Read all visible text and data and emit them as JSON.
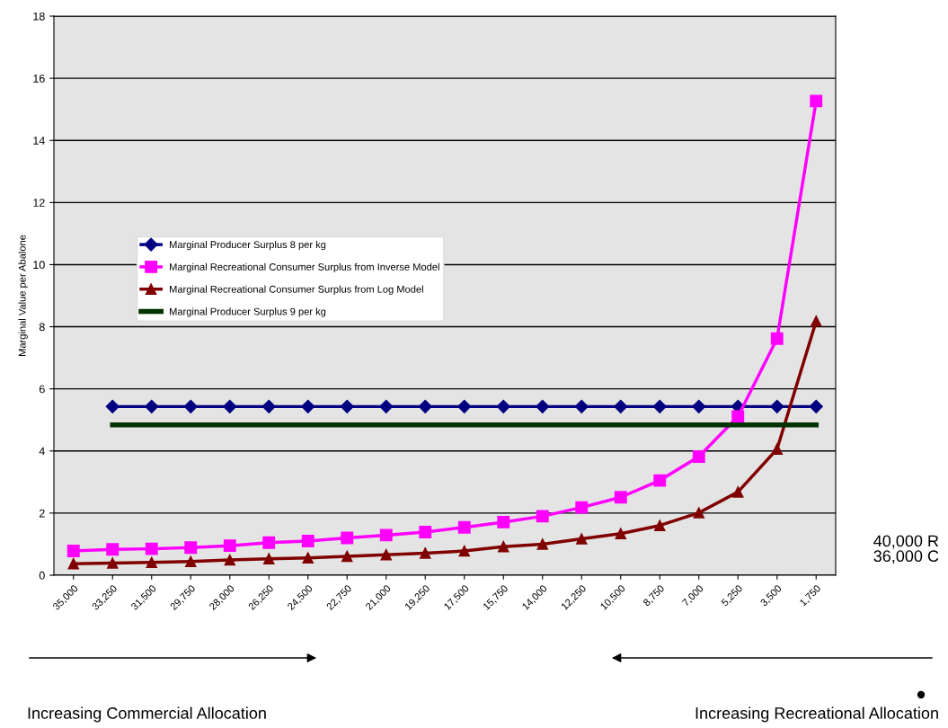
{
  "chart_data": {
    "type": "line",
    "ylabel": "Marginal Value per Abalone",
    "categories": [
      "35,000",
      "33,250",
      "31,500",
      "29,750",
      "28,000",
      "26,250",
      "24,500",
      "22,750",
      "21,000",
      "19,250",
      "17,500",
      "15,750",
      "14,000",
      "12,250",
      "10,500",
      "8,750",
      "7,000",
      "5,250",
      "3,500",
      "1,750"
    ],
    "series": [
      {
        "name": "Marginal Producer Surplus 8 per kg",
        "color": "#000080",
        "marker": "diamond",
        "values": [
          null,
          5.43,
          5.43,
          5.43,
          5.43,
          5.43,
          5.43,
          5.43,
          5.43,
          5.43,
          5.43,
          5.43,
          5.43,
          5.43,
          5.43,
          5.43,
          5.43,
          5.43,
          5.43,
          5.43
        ]
      },
      {
        "name": "Marginal Recreational Consumer Surplus from Inverse Model",
        "color": "#ff00ff",
        "marker": "square",
        "values": [
          0.78,
          0.83,
          0.85,
          0.89,
          0.95,
          1.05,
          1.1,
          1.2,
          1.29,
          1.39,
          1.54,
          1.71,
          1.9,
          2.18,
          2.51,
          3.05,
          3.82,
          5.11,
          7.62,
          15.27
        ]
      },
      {
        "name": "Marginal Recreational Consumer Surplus from Log Model",
        "color": "#800000",
        "marker": "triangle",
        "values": [
          0.37,
          0.39,
          0.41,
          0.44,
          0.49,
          0.53,
          0.56,
          0.61,
          0.66,
          0.71,
          0.78,
          0.92,
          1.0,
          1.17,
          1.34,
          1.6,
          2.01,
          2.68,
          4.06,
          8.18
        ]
      },
      {
        "name": "Marginal Producer Surplus 9 per kg",
        "color": "#003300",
        "marker": "none",
        "values": [
          null,
          4.84,
          4.84,
          4.84,
          4.84,
          4.84,
          4.84,
          4.84,
          4.84,
          4.84,
          4.84,
          4.84,
          4.84,
          4.84,
          4.84,
          4.84,
          4.84,
          4.84,
          4.84,
          4.84
        ]
      }
    ],
    "ylim": [
      0,
      18
    ],
    "yticks": [
      0,
      2,
      4,
      6,
      8,
      10,
      12,
      14,
      16,
      18
    ],
    "grid": "y",
    "legend": "center left",
    "annotations": [
      "40,000 R\n36,000 C",
      "Increasing Commercial Allocation",
      "Increasing Recreational Allocation"
    ]
  }
}
